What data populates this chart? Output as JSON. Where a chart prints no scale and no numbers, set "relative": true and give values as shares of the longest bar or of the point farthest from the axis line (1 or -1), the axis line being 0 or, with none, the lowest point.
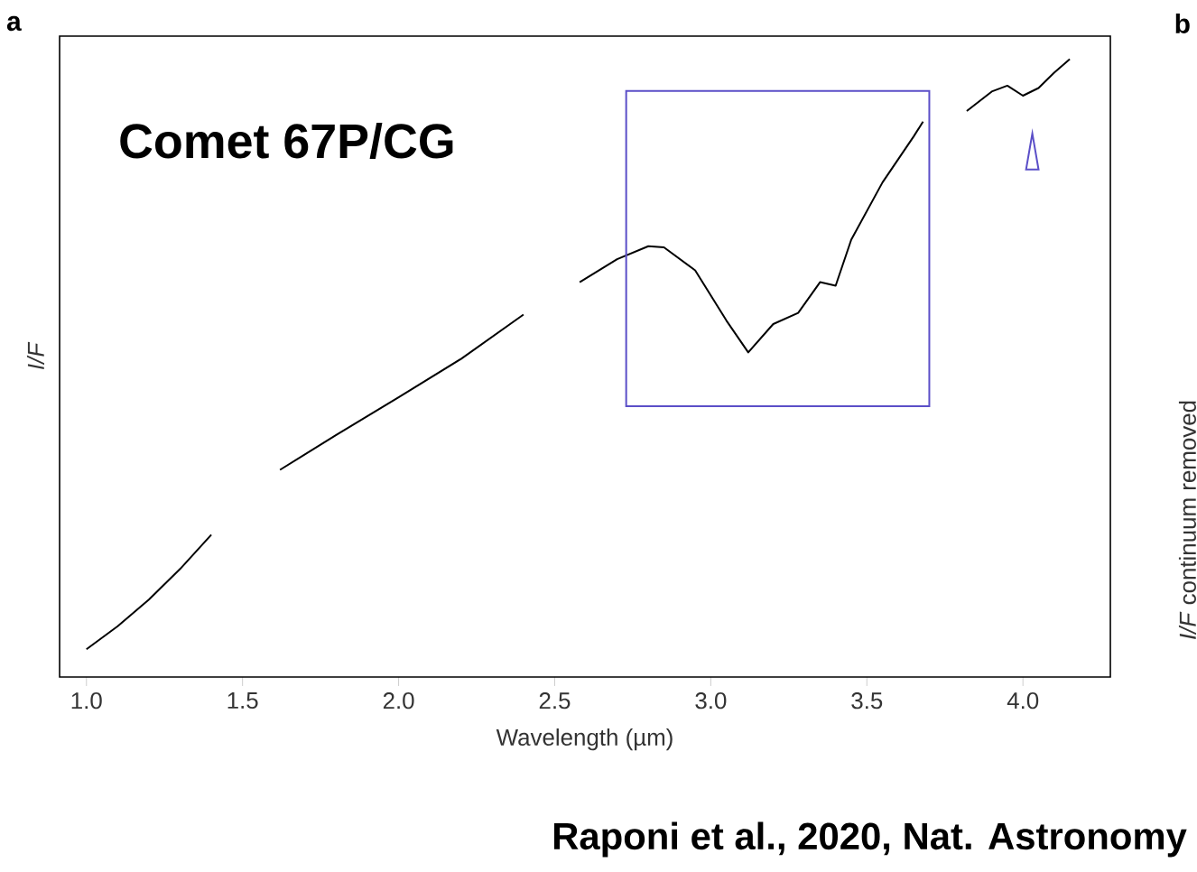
{
  "chart_data": {
    "type": "line",
    "relative": true,
    "color": "#000000",
    "xlabel": "Wavelength (µm)",
    "ylabel": "I/F",
    "xlim": [
      0.914,
      4.28
    ],
    "xticks": [
      {
        "value": 1.0,
        "label": "1.0"
      },
      {
        "value": 1.5,
        "label": "1.5"
      },
      {
        "value": 2.0,
        "label": "2.0"
      },
      {
        "value": 2.5,
        "label": "2.5"
      },
      {
        "value": 3.0,
        "label": "3.0"
      },
      {
        "value": 3.5,
        "label": "3.5"
      },
      {
        "value": 4.0,
        "label": "4.0"
      }
    ],
    "x": [
      1.0,
      1.1,
      1.2,
      1.3,
      1.4,
      1.5,
      1.62,
      1.8,
      2.0,
      2.2,
      2.4,
      2.5,
      2.58,
      2.7,
      2.8,
      2.85,
      2.95,
      3.05,
      3.12,
      3.2,
      3.28,
      3.35,
      3.4,
      3.45,
      3.55,
      3.65,
      3.68,
      3.75,
      3.82,
      3.9,
      3.95,
      4.0,
      4.05,
      4.1,
      4.15
    ],
    "values": [
      0,
      0.039,
      0.084,
      0.136,
      0.194,
      null,
      0.304,
      0.363,
      0.427,
      0.492,
      0.567,
      null,
      0.622,
      0.661,
      0.683,
      0.681,
      0.642,
      0.557,
      0.503,
      0.551,
      0.57,
      0.622,
      0.616,
      0.694,
      0.791,
      0.869,
      0.894,
      null,
      0.912,
      0.945,
      0.955,
      0.938,
      0.951,
      0.977,
      1
    ],
    "annotations": [
      "a",
      "b",
      "Comet 67P/CG",
      "*I/F* continuum removed",
      "Raponi et al., 2020, Nat. Astronomy"
    ]
  }
}
